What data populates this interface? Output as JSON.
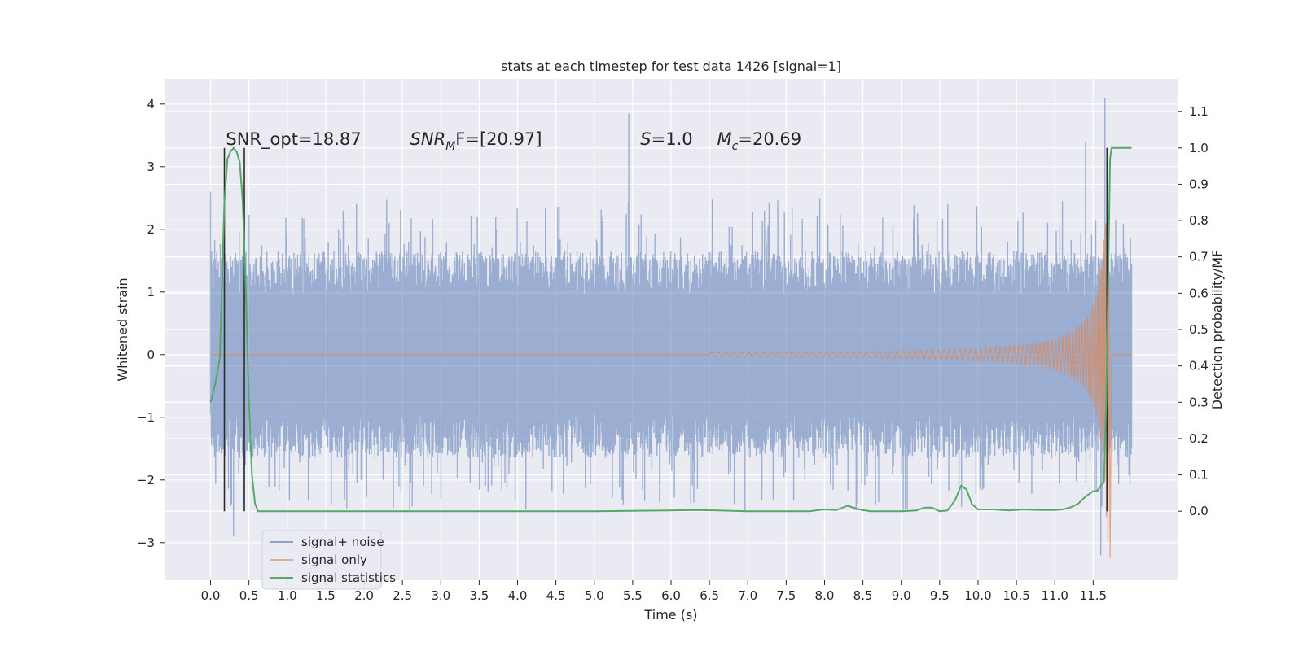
{
  "chart_data": {
    "type": "line",
    "title": "stats at each timestep for test data 1426 [signal=1]",
    "xlabel": "Time (s)",
    "ylabel_left": "Whitened strain",
    "ylabel_right": "Detection probability/MF",
    "x_range": [
      -0.6,
      12.6
    ],
    "y_left_range": [
      -3.6,
      4.4
    ],
    "y_right_range": [
      -0.19,
      1.19
    ],
    "x_ticks": [
      0.0,
      0.5,
      1.0,
      1.5,
      2.0,
      2.5,
      3.0,
      3.5,
      4.0,
      4.5,
      5.0,
      5.5,
      6.0,
      6.5,
      7.0,
      7.5,
      8.0,
      8.5,
      9.0,
      9.5,
      10.0,
      10.5,
      11.0,
      11.5
    ],
    "x_tick_labels": [
      "0.0",
      "0.5",
      "1.0",
      "1.5",
      "2.0",
      "2.5",
      "3.0",
      "3.5",
      "4.0",
      "4.5",
      "5.0",
      "5.5",
      "6.0",
      "6.5",
      "7.0",
      "7.5",
      "8.0",
      "8.5",
      "9.0",
      "9.5",
      "10.0",
      "10.5",
      "11.0",
      "11.5"
    ],
    "y_left_ticks": [
      -3,
      -2,
      -1,
      0,
      1,
      2,
      3,
      4
    ],
    "y_left_tick_labels": [
      "−3",
      "−2",
      "−1",
      "0",
      "1",
      "2",
      "3",
      "4"
    ],
    "y_right_ticks": [
      0.0,
      0.1,
      0.2,
      0.3,
      0.4,
      0.5,
      0.6,
      0.7,
      0.8,
      0.9,
      1.0,
      1.1
    ],
    "y_right_tick_labels": [
      "0.0",
      "0.1",
      "0.2",
      "0.3",
      "0.4",
      "0.5",
      "0.6",
      "0.7",
      "0.8",
      "0.9",
      "1.0",
      "1.1"
    ],
    "grid": true,
    "legend_placement": "lower-left",
    "series": [
      {
        "name": "signal+ noise",
        "color": "#4c72b0",
        "axis": "left",
        "duration_s": 12.0,
        "envelope_core": [
          -0.95,
          0.95
        ],
        "envelope_peaks": [
          -2.9,
          4.1
        ],
        "notable_peaks": [
          {
            "x": 0.0,
            "y": 2.6
          },
          {
            "x": 5.45,
            "y": 3.85
          },
          {
            "x": 11.65,
            "y": 4.1
          },
          {
            "x": 11.4,
            "y": 3.4
          },
          {
            "x": 0.3,
            "y": -2.9
          },
          {
            "x": 11.6,
            "y": -3.2
          }
        ]
      },
      {
        "name": "signal only",
        "color": "#dd8452",
        "axis": "left",
        "chirp_start_s": 6.5,
        "merger_s": 11.7,
        "peak_amplitude": 3.25
      },
      {
        "name": "signal statistics",
        "color": "#55a868",
        "axis": "right",
        "x": [
          0.0,
          0.06,
          0.12,
          0.18,
          0.22,
          0.26,
          0.3,
          0.34,
          0.38,
          0.42,
          0.46,
          0.5,
          0.54,
          0.58,
          0.62,
          0.7,
          1.0,
          2.0,
          3.0,
          4.0,
          5.0,
          6.0,
          6.3,
          6.6,
          7.0,
          7.5,
          7.8,
          8.0,
          8.15,
          8.3,
          8.45,
          8.6,
          9.0,
          9.2,
          9.3,
          9.4,
          9.5,
          9.6,
          9.7,
          9.78,
          9.85,
          9.92,
          10.0,
          10.2,
          10.4,
          10.6,
          10.8,
          11.0,
          11.1,
          11.2,
          11.3,
          11.4,
          11.5,
          11.55,
          11.6,
          11.64,
          11.67,
          11.7,
          11.72,
          11.74,
          11.78,
          11.85,
          11.95,
          12.0
        ],
        "y": [
          0.3,
          0.35,
          0.42,
          0.85,
          0.97,
          0.99,
          1.0,
          0.99,
          0.96,
          0.85,
          0.6,
          0.3,
          0.1,
          0.02,
          0.0,
          0.0,
          0.0,
          0.0,
          0.0,
          0.0,
          0.0,
          0.002,
          0.003,
          0.002,
          0.0,
          0.0,
          0.0,
          0.005,
          0.003,
          0.015,
          0.005,
          0.0,
          0.0,
          0.002,
          0.01,
          0.01,
          0.0,
          0.002,
          0.03,
          0.07,
          0.06,
          0.02,
          0.005,
          0.005,
          0.002,
          0.005,
          0.003,
          0.003,
          0.005,
          0.01,
          0.02,
          0.04,
          0.055,
          0.055,
          0.07,
          0.08,
          0.3,
          0.7,
          0.97,
          1.0,
          1.0,
          1.0,
          1.0,
          1.0
        ]
      }
    ],
    "vertical_markers": [
      {
        "x": 0.18,
        "y_left_range": [
          -2.5,
          3.3
        ]
      },
      {
        "x": 0.44,
        "y_left_range": [
          -2.5,
          3.3
        ]
      },
      {
        "x": 11.68,
        "y_left_range": [
          -2.5,
          3.3
        ]
      }
    ],
    "annotations": [
      {
        "id": "snr-opt",
        "text": "SNR_opt=18.87",
        "x": 0.2,
        "y": 3.35
      },
      {
        "id": "snr-mf",
        "text": "SNR",
        "sub": "M",
        "after": "F=[20.97]",
        "x": 2.6,
        "y": 3.35
      },
      {
        "id": "s",
        "text": "S",
        "after": "=1.0",
        "x": 5.6,
        "y": 3.35
      },
      {
        "id": "mc",
        "text": "M",
        "sub": "c",
        "after": "=20.69",
        "x": 6.6,
        "y": 3.35
      }
    ]
  }
}
